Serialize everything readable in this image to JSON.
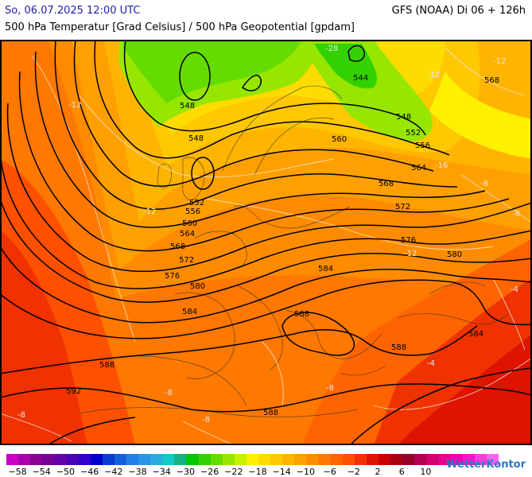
{
  "header": {
    "date": "So, 06.07.2025 12:00 UTC",
    "model": "GFS (NOAA) Di 06 + 126h",
    "title": "500 hPa Temperatur [Grad Celsius] / 500 hPa Geopotential [gpdam]"
  },
  "contour_labels": [
    "548",
    "548",
    "544",
    "548",
    "552",
    "556",
    "552",
    "556",
    "560",
    "560",
    "564",
    "564",
    "568",
    "568",
    "568",
    "572",
    "572",
    "576",
    "576",
    "580",
    "580",
    "584",
    "584",
    "584",
    "588",
    "588",
    "588",
    "592",
    "588"
  ],
  "temperature_labels": [
    "-28",
    "-12",
    "-12",
    "-12",
    "-16",
    "-12",
    "-12",
    "-8",
    "-8",
    "-4",
    "-8",
    "-8",
    "-8",
    "-8",
    "-4"
  ],
  "legend": {
    "colors": [
      "#c800c8",
      "#aa00aa",
      "#8c0096",
      "#780096",
      "#6400aa",
      "#4b00b4",
      "#3200c8",
      "#0000c8",
      "#0a3cd2",
      "#1460dc",
      "#1e82e6",
      "#2896e6",
      "#28aadc",
      "#14c8c8",
      "#14b482",
      "#00c800",
      "#32d200",
      "#64dc00",
      "#96e600",
      "#c8f000",
      "#fff000",
      "#ffdc00",
      "#ffc800",
      "#ffb400",
      "#ffa000",
      "#ff8c00",
      "#ff7800",
      "#ff6400",
      "#ff5000",
      "#f03200",
      "#dc1400",
      "#c80000",
      "#aa0014",
      "#960028",
      "#b40050",
      "#d2006e",
      "#e6008c",
      "#f000b4",
      "#ff14c8",
      "#ff3cdc",
      "#ff64f0"
    ],
    "ticks": [
      "−58",
      "−54",
      "−50",
      "−46",
      "−42",
      "−38",
      "−34",
      "−30",
      "−26",
      "−22",
      "−18",
      "−14",
      "−10",
      "−6",
      "−2",
      "2",
      "6",
      "10"
    ]
  },
  "brand": "WetterKontor"
}
